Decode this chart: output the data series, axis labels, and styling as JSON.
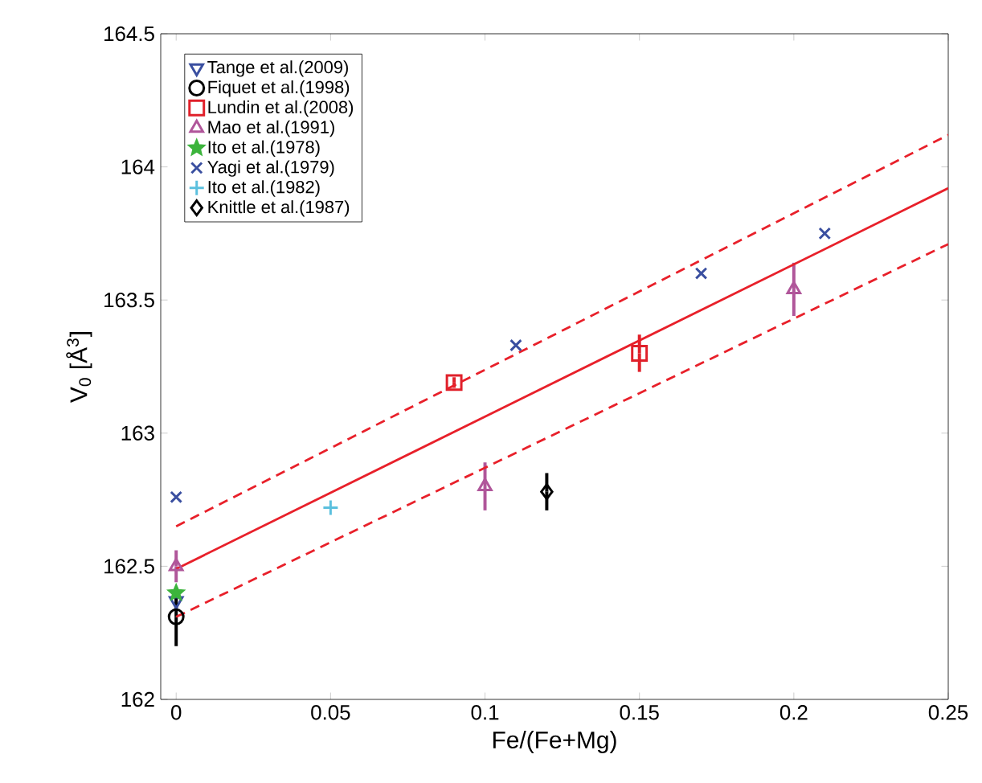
{
  "chart_data": {
    "type": "scatter",
    "xlabel": "Fe/(Fe+Mg)",
    "ylabel": "V$_{0}$ [Å$^{3}$]",
    "xlim": [
      -0.005,
      0.25
    ],
    "ylim": [
      162,
      164.5
    ],
    "xticks": [
      0,
      0.05,
      0.1,
      0.15,
      0.2,
      0.25
    ],
    "yticks": [
      162,
      162.5,
      163,
      163.5,
      164,
      164.5
    ],
    "legend": "top left",
    "grid": false,
    "series": [
      {
        "name": "Tange et al.(2009)",
        "color": "#3a4fa0",
        "marker": "triangle down",
        "x": [
          0
        ],
        "values": [
          162.37
        ],
        "errors": [
          0.03
        ]
      },
      {
        "name": "Fiquet et al.(1998)",
        "color": "#000000",
        "marker": "circle",
        "x": [
          0
        ],
        "values": [
          162.31
        ],
        "errors": [
          0.11
        ]
      },
      {
        "name": "Lundin et al.(2008)",
        "color": "#e0202a",
        "marker": "square",
        "x": [
          0.09,
          0.15
        ],
        "values": [
          163.19,
          163.3
        ],
        "errors": [
          0.02,
          0.07
        ]
      },
      {
        "name": "Mao et al.(1991)",
        "color": "#b0569a",
        "marker": "triangle",
        "x": [
          0,
          0.1,
          0.2
        ],
        "values": [
          162.5,
          162.8,
          163.54
        ],
        "errors": [
          0.06,
          0.09,
          0.1
        ]
      },
      {
        "name": "Ito et al.(1978)",
        "color": "#3cb43c",
        "marker": "star",
        "x": [
          0
        ],
        "values": [
          162.4
        ]
      },
      {
        "name": "Yagi et al.(1979)",
        "color": "#3a4fa0",
        "marker": "cross",
        "x": [
          0,
          0.11,
          0.17,
          0.21
        ],
        "values": [
          162.76,
          163.33,
          163.6,
          163.75
        ]
      },
      {
        "name": "Ito et al.(1982)",
        "color": "#5bc0de",
        "marker": "plus",
        "x": [
          0.05
        ],
        "values": [
          162.72
        ]
      },
      {
        "name": "Knittle et al.(1987)",
        "color": "#000000",
        "marker": "diamond",
        "x": [
          0.12
        ],
        "values": [
          162.78
        ],
        "errors": [
          0.07
        ]
      },
      {
        "type": "line",
        "color": "#e8202a",
        "line_style": "solid",
        "x": [
          0,
          0.25
        ],
        "values": [
          162.49,
          163.92
        ]
      },
      {
        "type": "line",
        "color": "#e8202a",
        "line_style": "dashed",
        "x": [
          0,
          0.25
        ],
        "values": [
          162.65,
          164.12
        ]
      },
      {
        "type": "line",
        "color": "#e8202a",
        "line_style": "dashed",
        "x": [
          0,
          0.25
        ],
        "values": [
          162.31,
          163.71
        ]
      }
    ]
  }
}
